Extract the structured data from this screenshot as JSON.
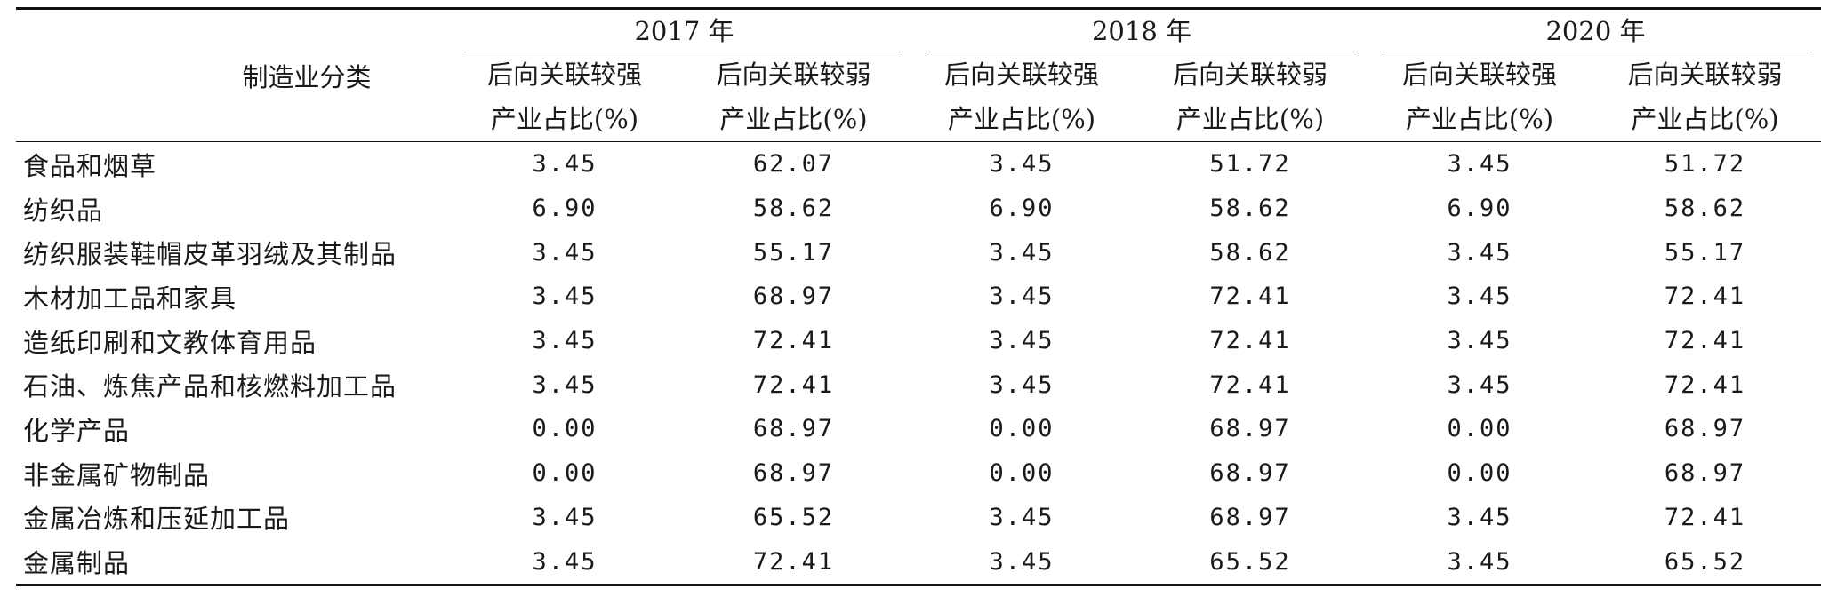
{
  "table": {
    "corner_header": "制造业分类",
    "years": [
      "2017 年",
      "2018 年",
      "2020 年"
    ],
    "sub_headers": {
      "strong_line1": "后向关联较强",
      "strong_line2": "产业占比(%)",
      "weak_line1": "后向关联较弱",
      "weak_line2": "产业占比(%)"
    },
    "rows": [
      {
        "category": "食品和烟草",
        "values": [
          "3.45",
          "62.07",
          "3.45",
          "51.72",
          "3.45",
          "51.72"
        ]
      },
      {
        "category": "纺织品",
        "values": [
          "6.90",
          "58.62",
          "6.90",
          "58.62",
          "6.90",
          "58.62"
        ]
      },
      {
        "category": "纺织服装鞋帽皮革羽绒及其制品",
        "values": [
          "3.45",
          "55.17",
          "3.45",
          "58.62",
          "3.45",
          "55.17"
        ]
      },
      {
        "category": "木材加工品和家具",
        "values": [
          "3.45",
          "68.97",
          "3.45",
          "72.41",
          "3.45",
          "72.41"
        ]
      },
      {
        "category": "造纸印刷和文教体育用品",
        "values": [
          "3.45",
          "72.41",
          "3.45",
          "72.41",
          "3.45",
          "72.41"
        ]
      },
      {
        "category": "石油、炼焦产品和核燃料加工品",
        "values": [
          "3.45",
          "72.41",
          "3.45",
          "72.41",
          "3.45",
          "72.41"
        ]
      },
      {
        "category": "化学产品",
        "values": [
          "0.00",
          "68.97",
          "0.00",
          "68.97",
          "0.00",
          "68.97"
        ]
      },
      {
        "category": "非金属矿物制品",
        "values": [
          "0.00",
          "68.97",
          "0.00",
          "68.97",
          "0.00",
          "68.97"
        ]
      },
      {
        "category": "金属冶炼和压延加工品",
        "values": [
          "3.45",
          "65.52",
          "3.45",
          "68.97",
          "3.45",
          "72.41"
        ]
      },
      {
        "category": "金属制品",
        "values": [
          "3.45",
          "72.41",
          "3.45",
          "65.52",
          "3.45",
          "65.52"
        ]
      }
    ]
  }
}
